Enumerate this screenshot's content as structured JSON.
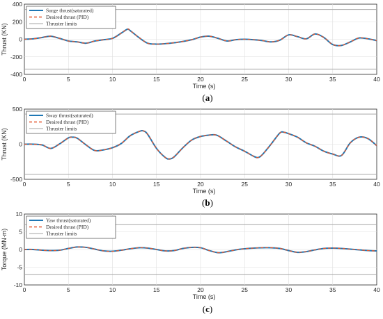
{
  "colors": {
    "series_saturated": "#1f77b4",
    "series_desired": "#e4572e",
    "thruster_limits": "#a6a6a6"
  },
  "chart_data": [
    {
      "type": "line",
      "caption": "(a)",
      "xlabel": "Time (s)",
      "ylabel": "Thrust (KN)",
      "xlim": [
        0,
        40
      ],
      "ylim": [
        -400,
        400
      ],
      "xticks": [
        "0",
        "5",
        "10",
        "15",
        "20",
        "25",
        "30",
        "35",
        "40"
      ],
      "yticks": [
        "400",
        "200",
        "0",
        "-200",
        "-400"
      ],
      "legend_position": "top-left",
      "grid": true,
      "limits": [
        340,
        -340
      ],
      "x": [
        0,
        1,
        2,
        3,
        4,
        5,
        6,
        7,
        8,
        9,
        10,
        11,
        11.7,
        12,
        13,
        14,
        15,
        16,
        17,
        18,
        19,
        20,
        21,
        22,
        23,
        24,
        25,
        26,
        27,
        28,
        29,
        30,
        31,
        32,
        33,
        34,
        35,
        36,
        37,
        38,
        39,
        40
      ],
      "series": [
        {
          "name": "Surge thrust(saturated)",
          "style": "solid",
          "values": [
            0,
            5,
            20,
            35,
            10,
            -20,
            -30,
            -45,
            -20,
            -5,
            10,
            70,
            115,
            100,
            20,
            -45,
            -55,
            -50,
            -40,
            -25,
            -5,
            25,
            35,
            10,
            -20,
            -5,
            0,
            -5,
            -15,
            -30,
            -10,
            50,
            30,
            5,
            60,
            20,
            -60,
            -70,
            -30,
            15,
            5,
            -15
          ]
        },
        {
          "name": "Desired thrust (PID)",
          "style": "dashed",
          "values": [
            0,
            5,
            20,
            35,
            10,
            -20,
            -30,
            -45,
            -20,
            -5,
            10,
            70,
            115,
            100,
            20,
            -45,
            -55,
            -50,
            -40,
            -25,
            -5,
            25,
            35,
            10,
            -20,
            -5,
            0,
            -5,
            -15,
            -30,
            -10,
            50,
            30,
            5,
            60,
            20,
            -60,
            -70,
            -30,
            15,
            5,
            -15
          ]
        },
        {
          "name": "Thruster limits",
          "style": "limit"
        }
      ]
    },
    {
      "type": "line",
      "caption": "(b)",
      "xlabel": "Time (s)",
      "ylabel": "Thrust (KN)",
      "xlim": [
        0,
        40
      ],
      "ylim": [
        -500,
        500
      ],
      "xticks": [
        "0",
        "5",
        "10",
        "15",
        "20",
        "25",
        "30",
        "35",
        "40"
      ],
      "yticks": [
        "500",
        "0",
        "-500"
      ],
      "legend_position": "top-left",
      "grid": true,
      "limits": [
        430,
        -430
      ],
      "x": [
        0,
        1,
        2,
        3,
        4,
        5,
        5.5,
        6,
        7,
        8,
        9,
        10,
        11,
        12,
        13,
        13.5,
        14,
        15,
        16,
        16.5,
        17,
        18,
        19,
        20,
        21,
        21.5,
        22,
        23,
        24,
        25,
        26,
        26.5,
        27,
        28,
        29,
        29.5,
        30,
        31,
        32,
        33,
        34,
        35,
        36,
        37,
        38,
        39,
        40
      ],
      "series": [
        {
          "name": "Sway thrust(saturated)",
          "style": "solid",
          "values": [
            0,
            0,
            -10,
            -60,
            5,
            90,
            100,
            85,
            -10,
            -90,
            -80,
            -50,
            10,
            120,
            180,
            190,
            140,
            -60,
            -190,
            -210,
            -180,
            -50,
            60,
            110,
            130,
            135,
            120,
            40,
            -40,
            -100,
            -170,
            -190,
            -150,
            0,
            160,
            170,
            150,
            100,
            20,
            -30,
            -100,
            -140,
            -160,
            20,
            100,
            80,
            -20
          ]
        },
        {
          "name": "Desired thrust (PID)",
          "style": "dashed",
          "values": [
            0,
            0,
            -10,
            -60,
            5,
            90,
            100,
            85,
            -10,
            -90,
            -80,
            -50,
            10,
            120,
            180,
            190,
            140,
            -60,
            -190,
            -210,
            -180,
            -50,
            60,
            110,
            130,
            135,
            120,
            40,
            -40,
            -100,
            -170,
            -190,
            -150,
            0,
            160,
            170,
            150,
            100,
            20,
            -30,
            -100,
            -140,
            -160,
            20,
            100,
            80,
            -20
          ]
        },
        {
          "name": "Thruster limits",
          "style": "limit"
        }
      ]
    },
    {
      "type": "line",
      "caption": "(c)",
      "xlabel": "Time (s)",
      "ylabel": "Torque (MN·m)",
      "xlim": [
        0,
        40
      ],
      "ylim": [
        -10,
        10
      ],
      "xticks": [
        "0",
        "5",
        "10",
        "15",
        "20",
        "25",
        "30",
        "35",
        "40"
      ],
      "yticks": [
        "10",
        "5",
        "0",
        "-5",
        "-10"
      ],
      "legend_position": "top-left",
      "grid": true,
      "limits": [
        7,
        -7
      ],
      "x": [
        0,
        1,
        2,
        3,
        4,
        5,
        6,
        7,
        8,
        9,
        10,
        11,
        12,
        13,
        14,
        15,
        16,
        17,
        18,
        19,
        20,
        21,
        22,
        23,
        24,
        25,
        26,
        27,
        28,
        29,
        30,
        31,
        32,
        33,
        34,
        35,
        36,
        37,
        38,
        39,
        40
      ],
      "series": [
        {
          "name": "Yaw thrust(saturated)",
          "style": "solid",
          "values": [
            0,
            0,
            -0.2,
            -0.3,
            -0.2,
            0.3,
            0.7,
            0.6,
            0.1,
            -0.4,
            -0.5,
            -0.2,
            0.2,
            0.5,
            0.4,
            0,
            -0.4,
            -0.3,
            0.3,
            0.6,
            0.5,
            -0.3,
            -0.9,
            -0.6,
            -0.1,
            0.2,
            0.4,
            0.5,
            0.5,
            0.3,
            -0.3,
            -0.8,
            -0.6,
            -0.1,
            0.3,
            0.4,
            0.3,
            0.1,
            -0.1,
            -0.3,
            -0.4
          ]
        },
        {
          "name": "Desired thrust (PID)",
          "style": "dashed",
          "values": [
            0,
            0,
            -0.2,
            -0.3,
            -0.2,
            0.3,
            0.7,
            0.6,
            0.1,
            -0.4,
            -0.5,
            -0.2,
            0.2,
            0.5,
            0.4,
            0,
            -0.4,
            -0.3,
            0.3,
            0.6,
            0.5,
            -0.3,
            -0.9,
            -0.6,
            -0.1,
            0.2,
            0.4,
            0.5,
            0.5,
            0.3,
            -0.3,
            -0.8,
            -0.6,
            -0.1,
            0.3,
            0.4,
            0.3,
            0.1,
            -0.1,
            -0.3,
            -0.4
          ]
        },
        {
          "name": "Thruster limits",
          "style": "limit"
        }
      ]
    }
  ]
}
